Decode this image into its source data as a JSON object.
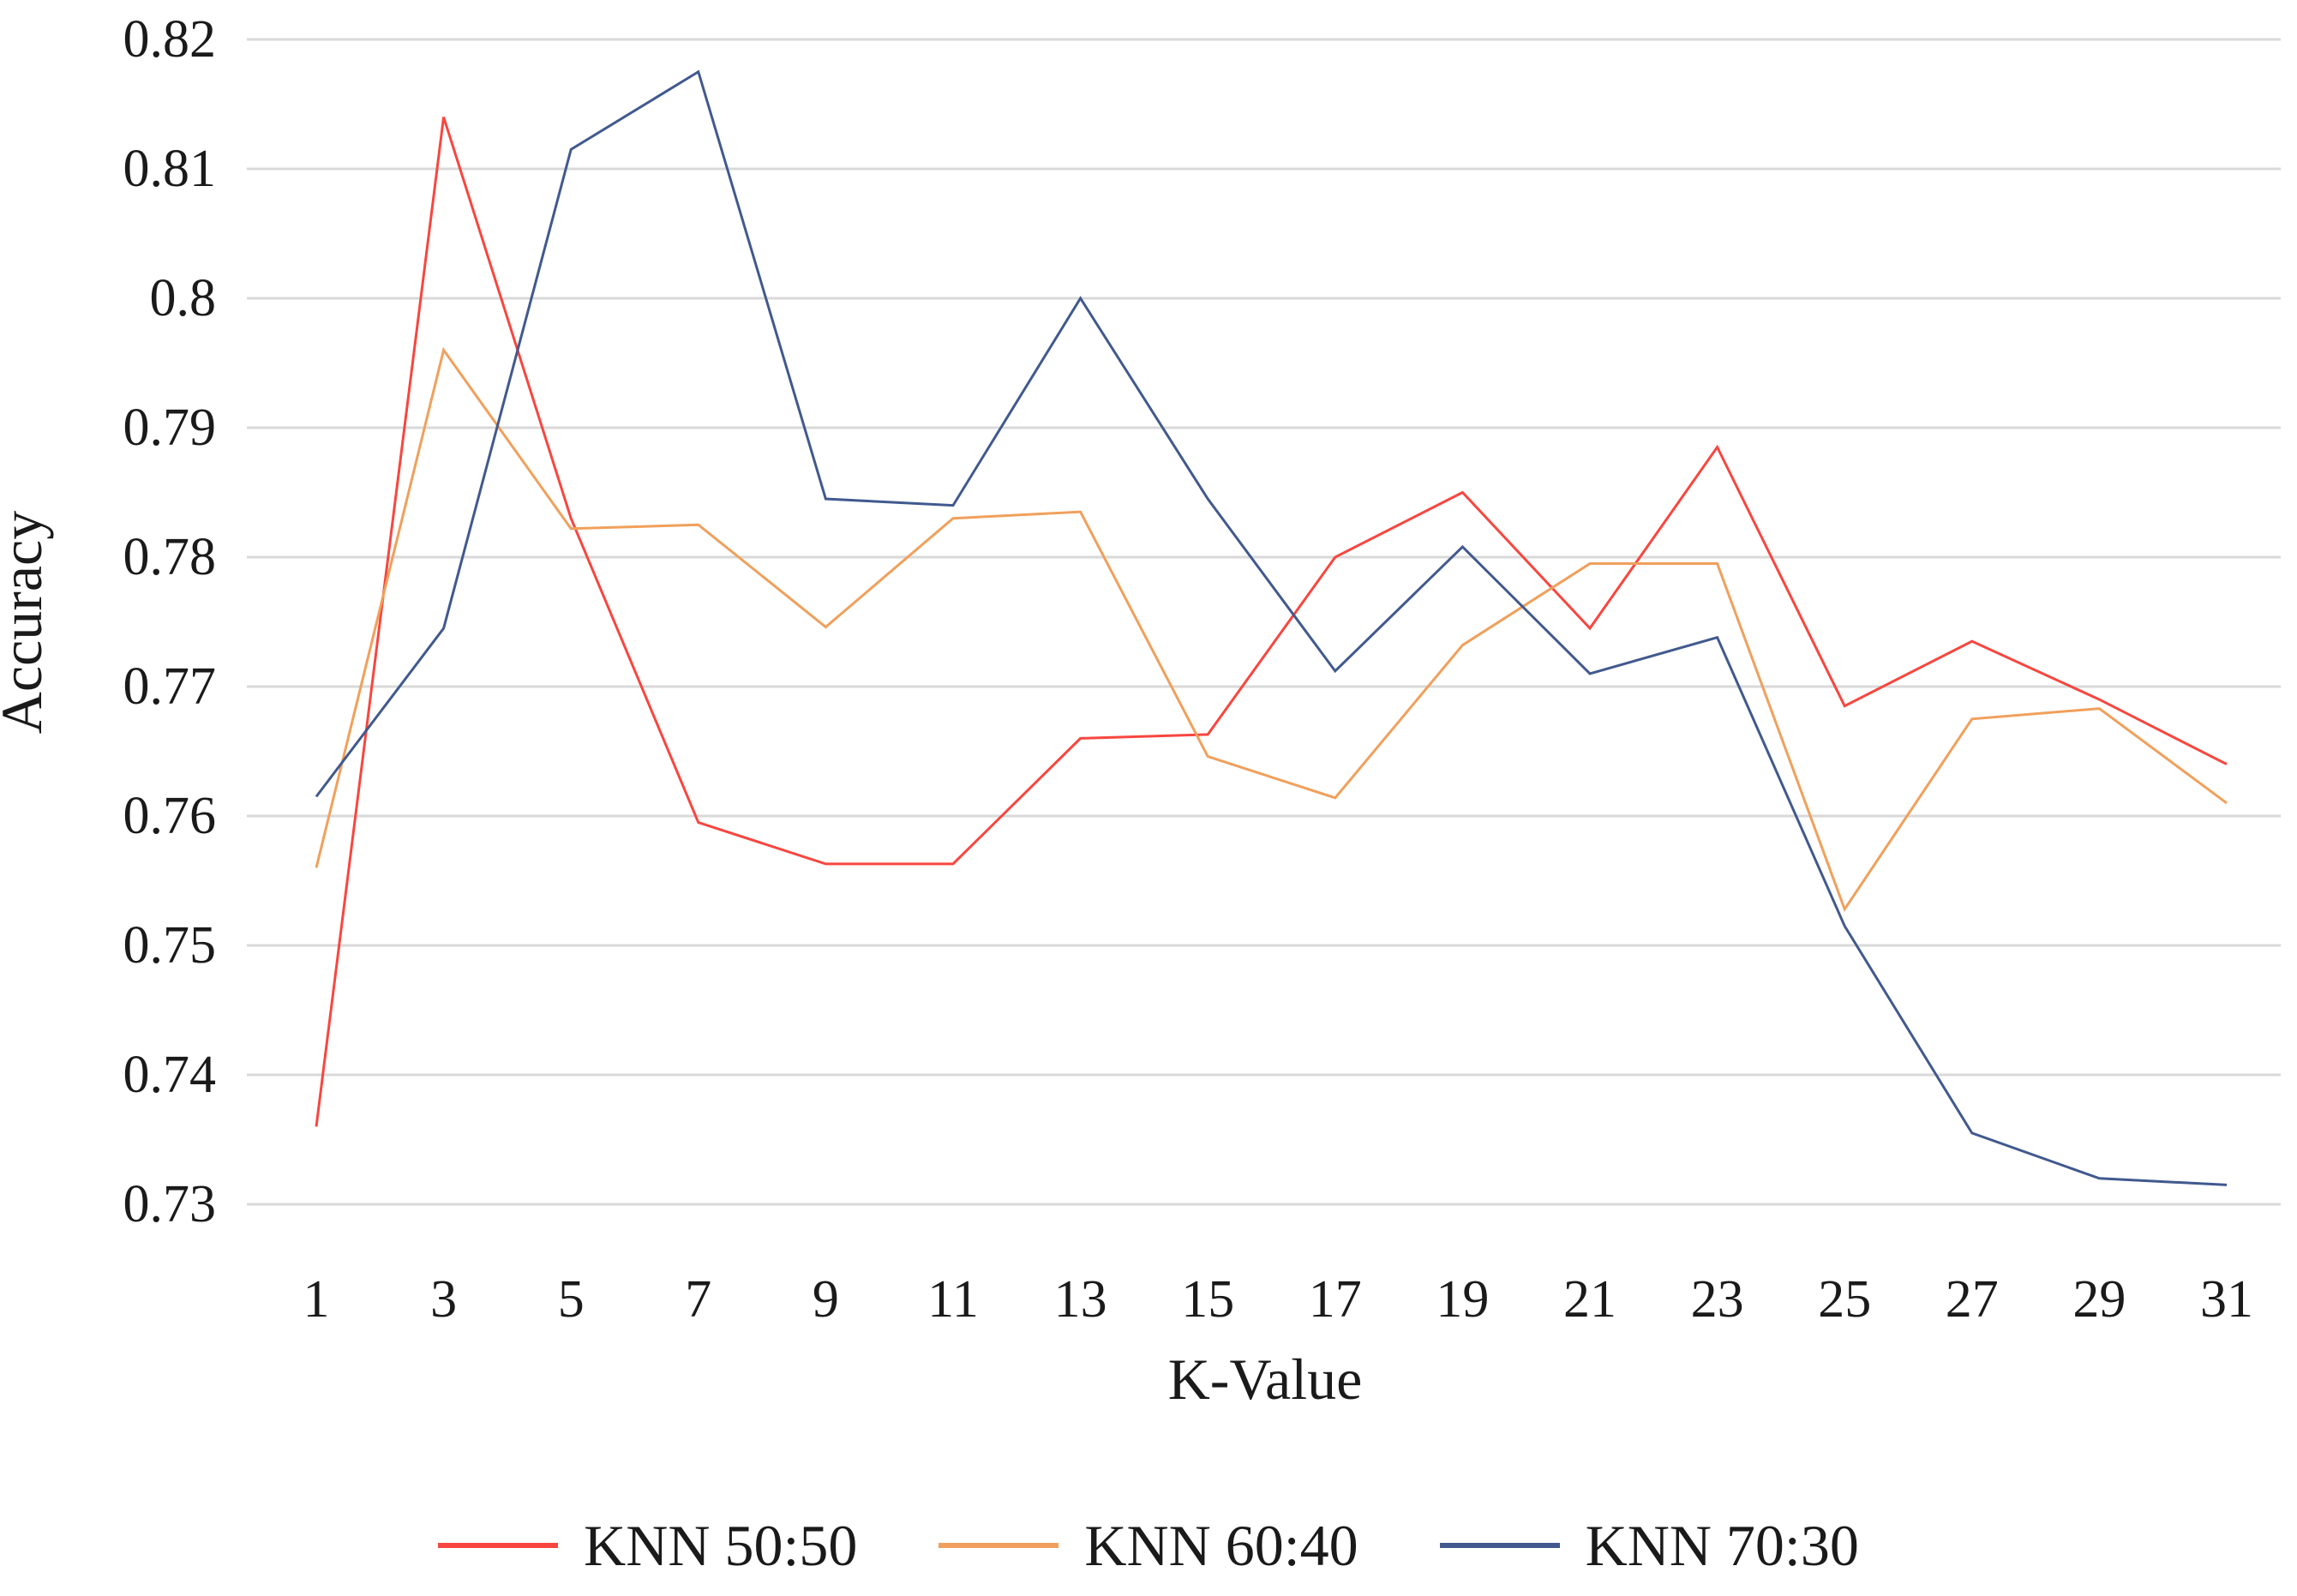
{
  "chart_data": {
    "type": "line",
    "title": "",
    "xlabel": "K-Value",
    "ylabel": "Accuracy",
    "categories": [
      1,
      3,
      5,
      7,
      9,
      11,
      13,
      15,
      17,
      19,
      21,
      23,
      25,
      27,
      29,
      31
    ],
    "ylim": [
      0.73,
      0.82
    ],
    "y_tick_labels": [
      "0.82",
      "0.81",
      "0.8",
      "0.79",
      "0.78",
      "0.77",
      "0.76",
      "0.75",
      "0.74",
      "0.73"
    ],
    "y_tick_values": [
      0.82,
      0.81,
      0.8,
      0.79,
      0.78,
      0.77,
      0.76,
      0.75,
      0.74,
      0.73
    ],
    "grid": true,
    "gridline_color": "#d9d9d9",
    "text_color": "#1a1a1a",
    "legend_position": "bottom",
    "series": [
      {
        "name": "KNN 50:50",
        "color": "#f8463f",
        "values": [
          0.736,
          0.814,
          0.783,
          0.7595,
          0.7563,
          0.7563,
          0.766,
          0.7663,
          0.78,
          0.785,
          0.7745,
          0.7885,
          0.7685,
          0.7735,
          0.769,
          0.764
        ]
      },
      {
        "name": "KNN 60:40",
        "color": "#f0a05c",
        "values": [
          0.756,
          0.796,
          0.7822,
          0.7825,
          0.7746,
          0.783,
          0.7835,
          0.7646,
          0.7614,
          0.7732,
          0.7795,
          0.7795,
          0.7528,
          0.7675,
          0.7683,
          0.761
        ]
      },
      {
        "name": "KNN 70:30",
        "color": "#41598e",
        "values": [
          0.7615,
          0.7745,
          0.8115,
          0.8175,
          0.7845,
          0.784,
          0.8,
          0.7845,
          0.7712,
          0.7808,
          0.771,
          0.7738,
          0.7515,
          0.7355,
          0.732,
          0.7315
        ]
      }
    ]
  }
}
